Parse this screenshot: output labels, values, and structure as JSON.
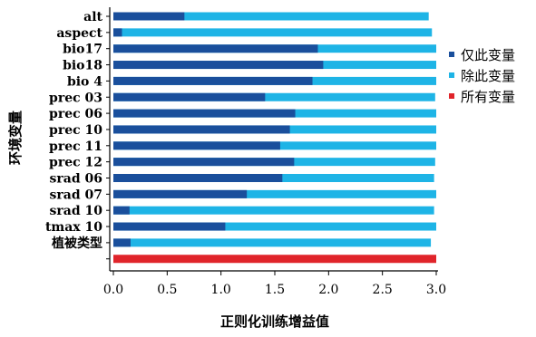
{
  "chart_data": {
    "type": "bar",
    "orientation": "horizontal",
    "stacked_overlay": true,
    "title": "",
    "xlabel": "正则化训练增益值",
    "ylabel": "环境变量",
    "xlim": [
      0,
      3.0
    ],
    "xticks": [
      "0.0",
      "0.5",
      "1.0",
      "1.5",
      "2.0",
      "2.5",
      "3.0"
    ],
    "categories": [
      "alt",
      "aspect",
      "bio17",
      "bio18",
      "bio 4",
      "prec 03",
      "prec 06",
      "prec 10",
      "prec 11",
      "prec 12",
      "srad 06",
      "srad 07",
      "srad 10",
      "tmax 10",
      "植被类型",
      ""
    ],
    "series": [
      {
        "name": "仅此变量",
        "color": "#1a4f9c",
        "values": [
          0.66,
          0.08,
          1.9,
          1.95,
          1.85,
          1.41,
          1.69,
          1.64,
          1.55,
          1.68,
          1.57,
          1.24,
          0.15,
          1.04,
          0.16,
          null
        ]
      },
      {
        "name": "除此变量",
        "color": "#1eb4e6",
        "values": [
          2.93,
          2.96,
          3.0,
          3.0,
          3.0,
          2.99,
          3.0,
          3.0,
          3.0,
          2.99,
          2.98,
          3.0,
          2.98,
          3.0,
          2.95,
          null
        ]
      },
      {
        "name": "所有变量",
        "color": "#e0242a",
        "values": [
          null,
          null,
          null,
          null,
          null,
          null,
          null,
          null,
          null,
          null,
          null,
          null,
          null,
          null,
          null,
          3.0
        ]
      }
    ],
    "legend": {
      "position": "right"
    },
    "grid": false
  }
}
